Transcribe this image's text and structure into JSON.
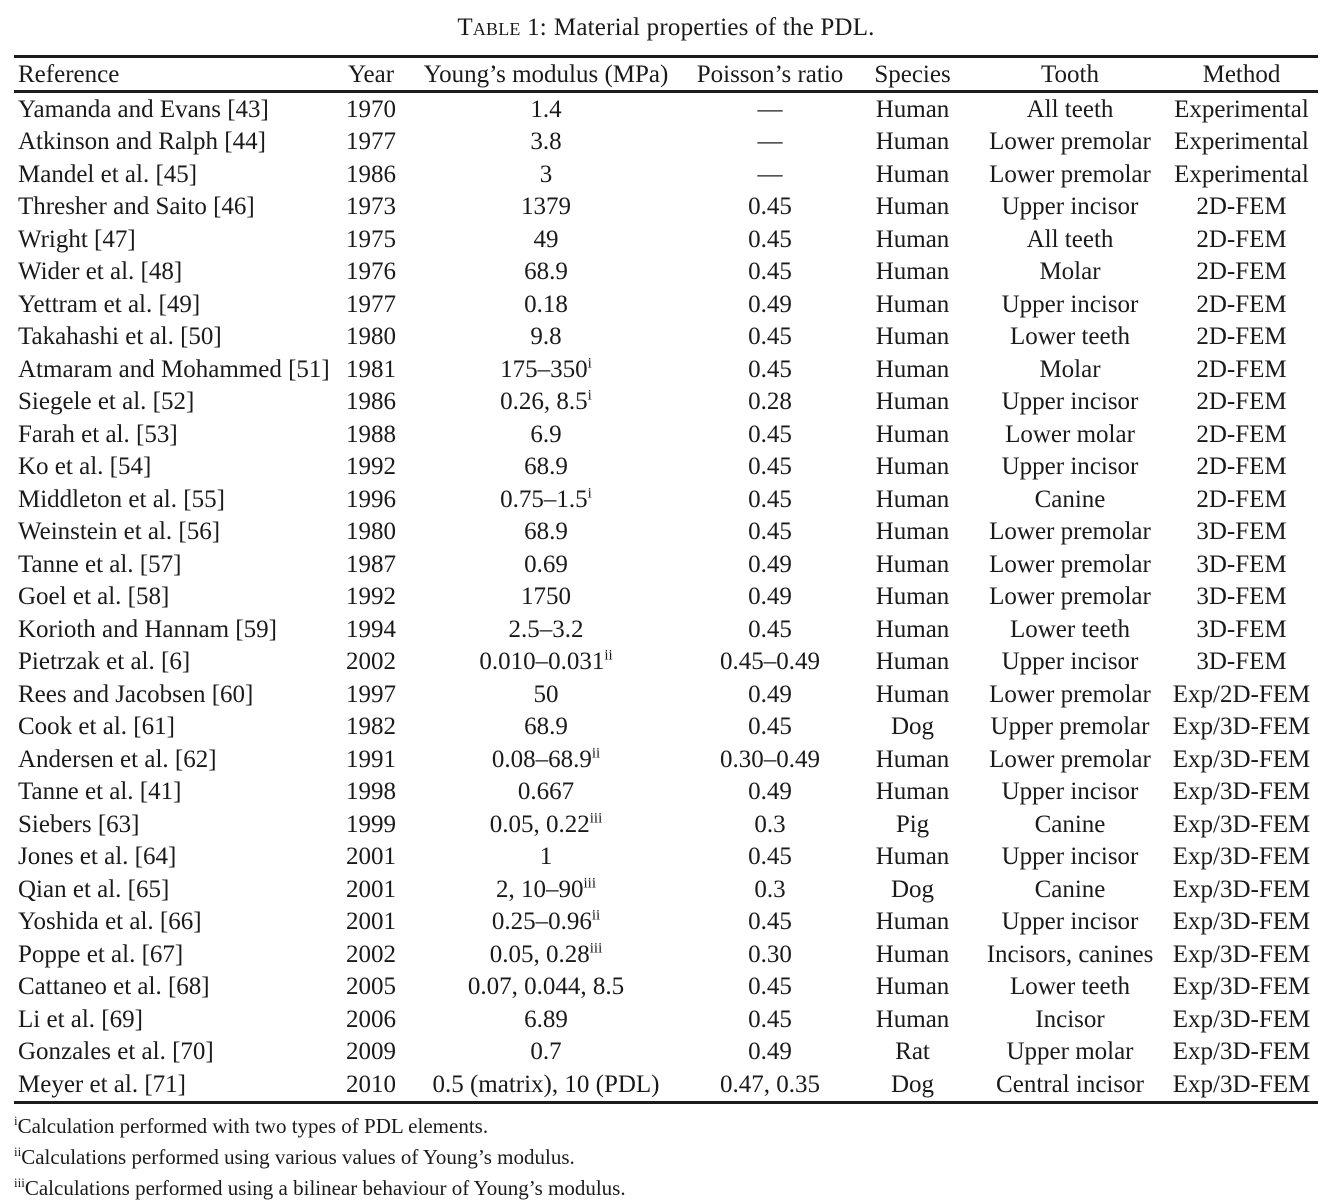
{
  "caption": {
    "label": "Table 1:",
    "text": "Material properties of the PDL."
  },
  "table": {
    "columns": [
      "Reference",
      "Year",
      "Young’s modulus (MPa)",
      "Poisson’s ratio",
      "Species",
      "Tooth",
      "Method"
    ],
    "rows": [
      {
        "reference": "Yamanda and Evans [43]",
        "year": "1970",
        "youngs_modulus": "1.4",
        "modulus_note": "",
        "poissons_ratio": "—",
        "species": "Human",
        "tooth": "All teeth",
        "method": "Experimental"
      },
      {
        "reference": "Atkinson and Ralph [44]",
        "year": "1977",
        "youngs_modulus": "3.8",
        "modulus_note": "",
        "poissons_ratio": "—",
        "species": "Human",
        "tooth": "Lower premolar",
        "method": "Experimental"
      },
      {
        "reference": "Mandel et al. [45]",
        "year": "1986",
        "youngs_modulus": "3",
        "modulus_note": "",
        "poissons_ratio": "—",
        "species": "Human",
        "tooth": "Lower premolar",
        "method": "Experimental"
      },
      {
        "reference": "Thresher and Saito [46]",
        "year": "1973",
        "youngs_modulus": "1379",
        "modulus_note": "",
        "poissons_ratio": "0.45",
        "species": "Human",
        "tooth": "Upper incisor",
        "method": "2D-FEM"
      },
      {
        "reference": "Wright [47]",
        "year": "1975",
        "youngs_modulus": "49",
        "modulus_note": "",
        "poissons_ratio": "0.45",
        "species": "Human",
        "tooth": "All teeth",
        "method": "2D-FEM"
      },
      {
        "reference": "Wider et al. [48]",
        "year": "1976",
        "youngs_modulus": "68.9",
        "modulus_note": "",
        "poissons_ratio": "0.45",
        "species": "Human",
        "tooth": "Molar",
        "method": "2D-FEM"
      },
      {
        "reference": "Yettram et al. [49]",
        "year": "1977",
        "youngs_modulus": "0.18",
        "modulus_note": "",
        "poissons_ratio": "0.49",
        "species": "Human",
        "tooth": "Upper incisor",
        "method": "2D-FEM"
      },
      {
        "reference": "Takahashi et al. [50]",
        "year": "1980",
        "youngs_modulus": "9.8",
        "modulus_note": "",
        "poissons_ratio": "0.45",
        "species": "Human",
        "tooth": "Lower teeth",
        "method": "2D-FEM"
      },
      {
        "reference": "Atmaram and Mohammed [51]",
        "year": "1981",
        "youngs_modulus": "175–350",
        "modulus_note": "i",
        "poissons_ratio": "0.45",
        "species": "Human",
        "tooth": "Molar",
        "method": "2D-FEM"
      },
      {
        "reference": "Siegele et al. [52]",
        "year": "1986",
        "youngs_modulus": "0.26, 8.5",
        "modulus_note": "i",
        "poissons_ratio": "0.28",
        "species": "Human",
        "tooth": "Upper incisor",
        "method": "2D-FEM"
      },
      {
        "reference": "Farah et al. [53]",
        "year": "1988",
        "youngs_modulus": "6.9",
        "modulus_note": "",
        "poissons_ratio": "0.45",
        "species": "Human",
        "tooth": "Lower molar",
        "method": "2D-FEM"
      },
      {
        "reference": "Ko et al. [54]",
        "year": "1992",
        "youngs_modulus": "68.9",
        "modulus_note": "",
        "poissons_ratio": "0.45",
        "species": "Human",
        "tooth": "Upper incisor",
        "method": "2D-FEM"
      },
      {
        "reference": "Middleton et al. [55]",
        "year": "1996",
        "youngs_modulus": "0.75–1.5",
        "modulus_note": "i",
        "poissons_ratio": "0.45",
        "species": "Human",
        "tooth": "Canine",
        "method": "2D-FEM"
      },
      {
        "reference": "Weinstein et al. [56]",
        "year": "1980",
        "youngs_modulus": "68.9",
        "modulus_note": "",
        "poissons_ratio": "0.45",
        "species": "Human",
        "tooth": "Lower premolar",
        "method": "3D-FEM"
      },
      {
        "reference": "Tanne et al. [57]",
        "year": "1987",
        "youngs_modulus": "0.69",
        "modulus_note": "",
        "poissons_ratio": "0.49",
        "species": "Human",
        "tooth": "Lower premolar",
        "method": "3D-FEM"
      },
      {
        "reference": "Goel et al. [58]",
        "year": "1992",
        "youngs_modulus": "1750",
        "modulus_note": "",
        "poissons_ratio": "0.49",
        "species": "Human",
        "tooth": "Lower premolar",
        "method": "3D-FEM"
      },
      {
        "reference": "Korioth and Hannam [59]",
        "year": "1994",
        "youngs_modulus": "2.5–3.2",
        "modulus_note": "",
        "poissons_ratio": "0.45",
        "species": "Human",
        "tooth": "Lower teeth",
        "method": "3D-FEM"
      },
      {
        "reference": "Pietrzak et al. [6]",
        "year": "2002",
        "youngs_modulus": "0.010–0.031",
        "modulus_note": "ii",
        "poissons_ratio": "0.45–0.49",
        "species": "Human",
        "tooth": "Upper incisor",
        "method": "3D-FEM"
      },
      {
        "reference": "Rees and Jacobsen [60]",
        "year": "1997",
        "youngs_modulus": "50",
        "modulus_note": "",
        "poissons_ratio": "0.49",
        "species": "Human",
        "tooth": "Lower premolar",
        "method": "Exp/2D-FEM"
      },
      {
        "reference": "Cook et al. [61]",
        "year": "1982",
        "youngs_modulus": "68.9",
        "modulus_note": "",
        "poissons_ratio": "0.45",
        "species": "Dog",
        "tooth": "Upper premolar",
        "method": "Exp/3D-FEM"
      },
      {
        "reference": "Andersen et al. [62]",
        "year": "1991",
        "youngs_modulus": "0.08–68.9",
        "modulus_note": "ii",
        "poissons_ratio": "0.30–0.49",
        "species": "Human",
        "tooth": "Lower premolar",
        "method": "Exp/3D-FEM"
      },
      {
        "reference": "Tanne et al. [41]",
        "year": "1998",
        "youngs_modulus": "0.667",
        "modulus_note": "",
        "poissons_ratio": "0.49",
        "species": "Human",
        "tooth": "Upper incisor",
        "method": "Exp/3D-FEM"
      },
      {
        "reference": "Siebers [63]",
        "year": "1999",
        "youngs_modulus": "0.05, 0.22",
        "modulus_note": "iii",
        "poissons_ratio": "0.3",
        "species": "Pig",
        "tooth": "Canine",
        "method": "Exp/3D-FEM"
      },
      {
        "reference": "Jones et al. [64]",
        "year": "2001",
        "youngs_modulus": "1",
        "modulus_note": "",
        "poissons_ratio": "0.45",
        "species": "Human",
        "tooth": "Upper incisor",
        "method": "Exp/3D-FEM"
      },
      {
        "reference": "Qian et al. [65]",
        "year": "2001",
        "youngs_modulus": "2, 10–90",
        "modulus_note": "iii",
        "poissons_ratio": "0.3",
        "species": "Dog",
        "tooth": "Canine",
        "method": "Exp/3D-FEM"
      },
      {
        "reference": "Yoshida et al. [66]",
        "year": "2001",
        "youngs_modulus": "0.25–0.96",
        "modulus_note": "ii",
        "poissons_ratio": "0.45",
        "species": "Human",
        "tooth": "Upper incisor",
        "method": "Exp/3D-FEM"
      },
      {
        "reference": "Poppe et al. [67]",
        "year": "2002",
        "youngs_modulus": "0.05, 0.28",
        "modulus_note": "iii",
        "poissons_ratio": "0.30",
        "species": "Human",
        "tooth": "Incisors, canines",
        "method": "Exp/3D-FEM"
      },
      {
        "reference": "Cattaneo et al. [68]",
        "year": "2005",
        "youngs_modulus": "0.07, 0.044, 8.5",
        "modulus_note": "",
        "poissons_ratio": "0.45",
        "species": "Human",
        "tooth": "Lower teeth",
        "method": "Exp/3D-FEM"
      },
      {
        "reference": "Li et al. [69]",
        "year": "2006",
        "youngs_modulus": "6.89",
        "modulus_note": "",
        "poissons_ratio": "0.45",
        "species": "Human",
        "tooth": "Incisor",
        "method": "Exp/3D-FEM"
      },
      {
        "reference": "Gonzales et al. [70]",
        "year": "2009",
        "youngs_modulus": "0.7",
        "modulus_note": "",
        "poissons_ratio": "0.49",
        "species": "Rat",
        "tooth": "Upper molar",
        "method": "Exp/3D-FEM"
      },
      {
        "reference": "Meyer et al. [71]",
        "year": "2010",
        "youngs_modulus": "0.5 (matrix), 10 (PDL)",
        "modulus_note": "",
        "poissons_ratio": "0.47, 0.35",
        "species": "Dog",
        "tooth": "Central incisor",
        "method": "Exp/3D-FEM"
      }
    ]
  },
  "footnotes": [
    {
      "marker": "i",
      "text": "Calculation performed with two types of PDL elements."
    },
    {
      "marker": "ii",
      "text": "Calculations performed using various values of Young’s modulus."
    },
    {
      "marker": "iii",
      "text": "Calculations performed using a bilinear behaviour of Young’s modulus."
    }
  ]
}
